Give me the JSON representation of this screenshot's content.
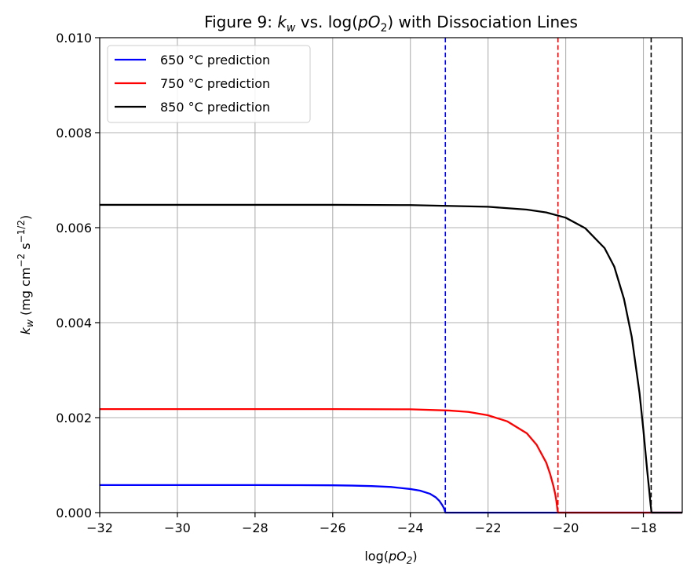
{
  "chart_data": {
    "type": "line",
    "title": {
      "prefix": "Figure 9: ",
      "k": "k",
      "k_sub": "w",
      "middle": " vs. log(",
      "p": "pO",
      "p_sub": "2",
      "suffix": ") with Dissociation Lines"
    },
    "xlabel": {
      "prefix": "log(",
      "p": "pO",
      "p_sub": "2",
      "suffix": ")"
    },
    "ylabel": {
      "k": "k",
      "k_sub": "w",
      "unit_a": " (mg cm",
      "exp_a": "−2",
      "unit_b": " s",
      "exp_b": "−1/2",
      "unit_c": ")"
    },
    "xlim": [
      -32,
      -17
    ],
    "ylim": [
      0.0,
      0.01
    ],
    "xticks": [
      -32,
      -30,
      -28,
      -26,
      -24,
      -22,
      -20,
      -18
    ],
    "xtick_labels": [
      "−32",
      "−30",
      "−28",
      "−26",
      "−24",
      "−22",
      "−20",
      "−18"
    ],
    "yticks": [
      0.0,
      0.002,
      0.004,
      0.006,
      0.008,
      0.01
    ],
    "ytick_labels": [
      "0.000",
      "0.002",
      "0.004",
      "0.006",
      "0.008",
      "0.010"
    ],
    "grid": true,
    "legend_position": "upper-left",
    "series": [
      {
        "name": "650 °C prediction",
        "color": "#0000ff",
        "x": [
          -32,
          -30,
          -28,
          -27,
          -26,
          -25.5,
          -25,
          -24.5,
          -24,
          -23.75,
          -23.5,
          -23.35,
          -23.25,
          -23.18,
          -23.14,
          -23.12,
          -23.1,
          -17
        ],
        "y": [
          0.00058,
          0.00058,
          0.00058,
          0.000579,
          0.000575,
          0.000569,
          0.000559,
          0.00054,
          0.000497,
          0.000463,
          0.000398,
          0.000325,
          0.000244,
          0.000159,
          0.0001,
          6e-05,
          0.0,
          0.0
        ]
      },
      {
        "name": "750 °C prediction",
        "color": "#ff0000",
        "x": [
          -32,
          -28,
          -26,
          -24,
          -23,
          -22.5,
          -22,
          -21.5,
          -21,
          -20.75,
          -20.5,
          -20.4,
          -20.32,
          -20.27,
          -20.24,
          -20.22,
          -20.2,
          -17
        ],
        "y": [
          0.00218,
          0.00218,
          0.00218,
          0.002175,
          0.00215,
          0.00212,
          0.00205,
          0.00192,
          0.00167,
          0.00143,
          0.00105,
          0.00081,
          0.00057,
          0.00039,
          0.00024,
          0.00011,
          0.0,
          0.0
        ]
      },
      {
        "name": "850 °C prediction",
        "color": "#000000",
        "x": [
          -32,
          -26,
          -24,
          -22,
          -21,
          -20.5,
          -20,
          -19.5,
          -19,
          -18.75,
          -18.5,
          -18.3,
          -18.1,
          -18.0,
          -17.9,
          -17.85,
          -17.81,
          -17.79,
          -17
        ],
        "y": [
          0.00648,
          0.00648,
          0.006475,
          0.00644,
          0.00638,
          0.00632,
          0.00621,
          0.00599,
          0.00557,
          0.00518,
          0.0045,
          0.0037,
          0.00252,
          0.00174,
          0.00087,
          0.00047,
          0.00014,
          0.0,
          0.0
        ]
      }
    ],
    "dissociation_lines": [
      {
        "x": -23.1,
        "color": "#0000ff"
      },
      {
        "x": -20.2,
        "color": "#ff0000"
      },
      {
        "x": -17.8,
        "color": "#000000"
      }
    ]
  }
}
